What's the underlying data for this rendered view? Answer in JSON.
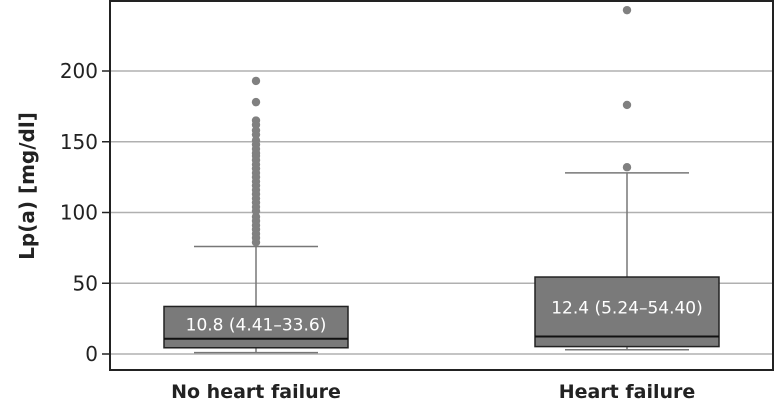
{
  "chart_data": {
    "type": "box",
    "ylabel": "Lp(a) [mg/dl]",
    "xlabel": "",
    "ylim": [
      -11,
      250
    ],
    "yticks": [
      0,
      50,
      100,
      150,
      200
    ],
    "grid": true,
    "categories": [
      "No heart failure",
      "Heart failure"
    ],
    "boxes": [
      {
        "label": "No heart failure",
        "median": 10.8,
        "q1": 4.41,
        "q3": 33.6,
        "whisker_low": 1,
        "whisker_high": 76,
        "annotation": "10.8 (4.41–33.6)",
        "outliers": [
          193,
          178,
          165,
          162,
          158,
          155,
          151,
          148,
          145,
          142,
          140,
          137,
          134,
          131,
          128,
          125,
          122,
          119,
          116,
          113,
          110,
          107,
          104,
          101,
          97,
          94,
          91,
          88,
          85,
          82,
          79
        ]
      },
      {
        "label": "Heart failure",
        "median": 12.4,
        "q1": 5.24,
        "q3": 54.4,
        "whisker_low": 3,
        "whisker_high": 128,
        "annotation": "12.4 (5.24–54.40)",
        "outliers": [
          132,
          176,
          243
        ]
      }
    ],
    "colors": {
      "box": "#7a7a7a",
      "outlier": "#808080",
      "grid": "#b0b0b0",
      "text_on_box": "#ffffff"
    }
  }
}
